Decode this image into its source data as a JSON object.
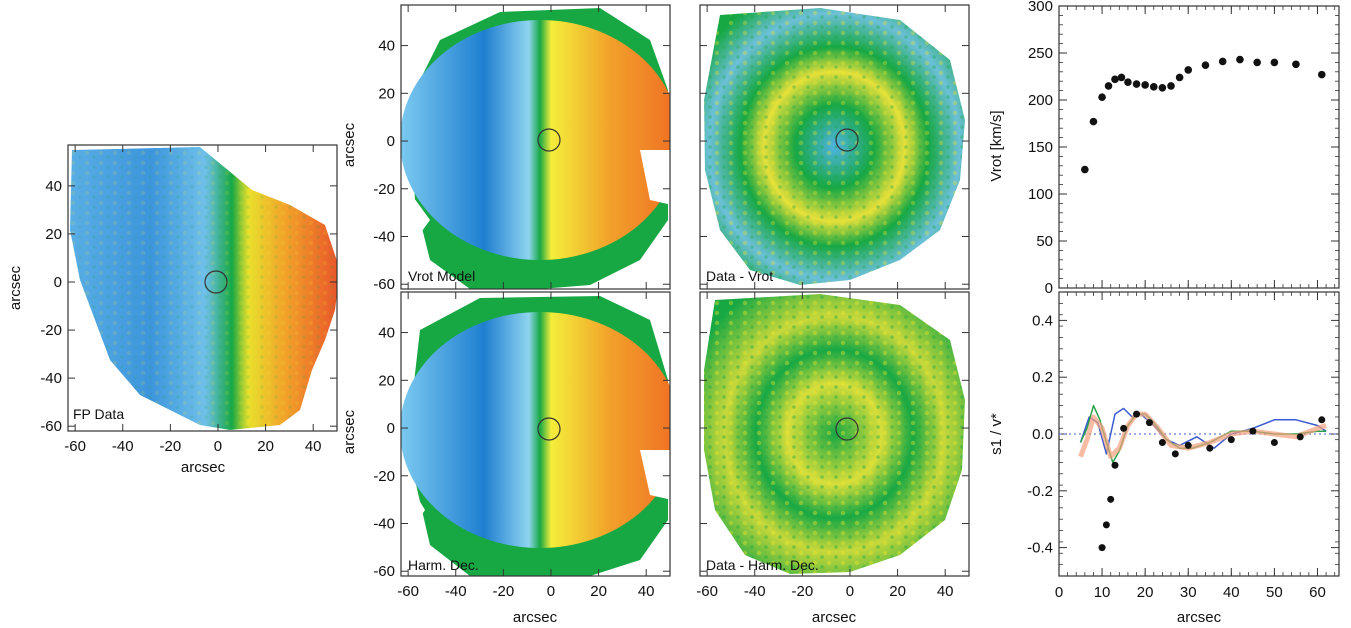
{
  "panels": {
    "fp_data": {
      "label": "FP Data",
      "xlabel": "arcsec",
      "ylabel": "arcsec"
    },
    "vrot_model": {
      "label": "Vrot Model",
      "ylabel": "arcsec"
    },
    "data_minus_vrot": {
      "label": "Data - Vrot"
    },
    "harm_dec": {
      "label": "Harm. Dec.",
      "xlabel": "arcsec",
      "ylabel": "arcsec"
    },
    "data_minus_harm": {
      "label": "Data - Harm. Dec.",
      "xlabel": "arcsec"
    }
  },
  "map_ticks": {
    "x": [
      -60,
      -40,
      -20,
      0,
      20,
      40
    ],
    "y": [
      40,
      20,
      0,
      -20,
      -40,
      -60
    ]
  },
  "colors": {
    "blue": "#1f7fd0",
    "lightblue": "#79c8ea",
    "green": "#17a844",
    "yellow": "#f2e62a",
    "orange": "#f07f22",
    "red": "#e8532a"
  },
  "chart_data": [
    {
      "type": "scatter",
      "title": "",
      "xlabel": "",
      "ylabel": "Vrot  [km/s]",
      "xlim": [
        0,
        65
      ],
      "ylim": [
        0,
        300
      ],
      "xticks": [
        0,
        10,
        20,
        30,
        40,
        50,
        60
      ],
      "yticks": [
        0,
        50,
        100,
        150,
        200,
        250,
        300
      ],
      "x": [
        6,
        8,
        10,
        11.5,
        13,
        14.5,
        16,
        18,
        20,
        22,
        24,
        26,
        28,
        30,
        34,
        38,
        42,
        46,
        50,
        55,
        61
      ],
      "y": [
        126,
        177,
        203,
        215,
        222,
        224,
        219,
        217,
        216,
        214,
        213,
        215,
        224,
        232,
        237,
        241,
        243,
        240,
        240,
        238,
        227
      ]
    },
    {
      "type": "line",
      "title": "",
      "xlabel": "arcsec",
      "ylabel": "s1 / v*",
      "xlim": [
        0,
        65
      ],
      "ylim": [
        -0.5,
        0.5
      ],
      "xticks": [
        0,
        10,
        20,
        30,
        40,
        50,
        60
      ],
      "yticks": [
        -0.4,
        -0.2,
        0.0,
        0.2,
        0.4
      ],
      "points": {
        "x": [
          10,
          11,
          12,
          13,
          15,
          18,
          21,
          24,
          27,
          30,
          35,
          40,
          45,
          50,
          56,
          61
        ],
        "y": [
          -0.4,
          -0.32,
          -0.23,
          -0.11,
          0.02,
          0.07,
          0.04,
          -0.03,
          -0.07,
          -0.04,
          -0.05,
          -0.02,
          0.01,
          -0.03,
          -0.01,
          0.05
        ]
      },
      "series": [
        {
          "color": "#3a5bd0",
          "x": [
            5,
            7,
            9,
            11,
            13,
            15,
            17,
            19,
            22,
            25,
            28,
            32,
            36,
            40,
            45,
            50,
            55,
            60,
            62
          ],
          "y": [
            -0.03,
            0.06,
            0.04,
            -0.07,
            0.07,
            0.09,
            0.06,
            0.07,
            0.03,
            -0.02,
            -0.04,
            -0.01,
            -0.05,
            0.0,
            0.02,
            0.05,
            0.05,
            0.03,
            0.01
          ]
        },
        {
          "color": "#2aa14a",
          "x": [
            5,
            6.5,
            8,
            9.5,
            11,
            12.5,
            14,
            16,
            18,
            20,
            22,
            25,
            28,
            31,
            35,
            40,
            45,
            50,
            55,
            60,
            62
          ],
          "y": [
            -0.03,
            0.02,
            0.1,
            0.05,
            -0.03,
            -0.1,
            -0.06,
            0.03,
            0.07,
            0.07,
            0.04,
            -0.02,
            -0.05,
            -0.05,
            -0.03,
            0.01,
            0.01,
            0.0,
            0.0,
            0.01,
            0.01
          ]
        },
        {
          "color": "#f4a07c",
          "x": [
            5,
            6.5,
            8,
            10,
            12,
            14,
            16,
            18,
            20,
            23,
            26,
            30,
            35,
            40,
            45,
            50,
            55,
            60,
            62
          ],
          "y": [
            -0.08,
            -0.02,
            0.06,
            0.02,
            -0.08,
            -0.05,
            0.03,
            0.07,
            0.07,
            0.02,
            -0.04,
            -0.05,
            -0.03,
            0.0,
            0.01,
            0.0,
            -0.01,
            0.02,
            0.03
          ]
        }
      ]
    }
  ]
}
